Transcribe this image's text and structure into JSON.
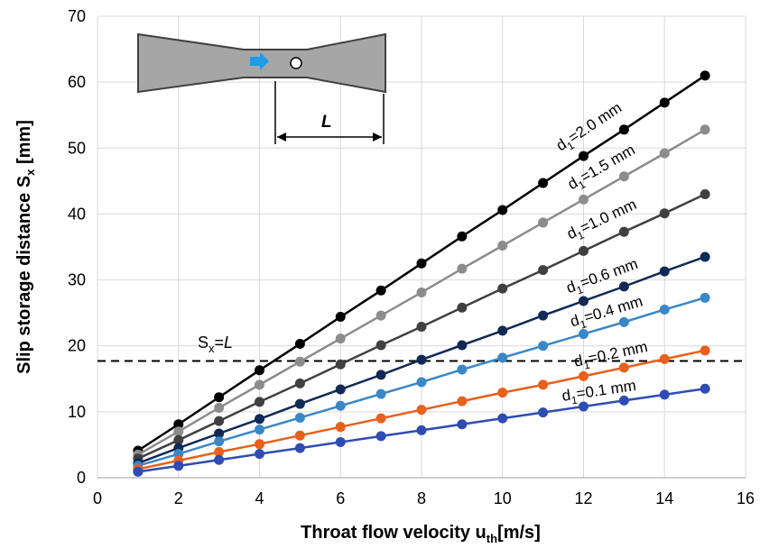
{
  "chart_data": {
    "type": "line",
    "xlabel": {
      "main": "Throat flow velocity u",
      "sub": "th",
      "tail": "[m/s]"
    },
    "ylabel": {
      "main": "Slip storage distance S",
      "sub": "x",
      "tail": " [mm]"
    },
    "xlim": [
      0,
      16
    ],
    "ylim": [
      0,
      70
    ],
    "xticks": [
      "0",
      "2",
      "4",
      "6",
      "8",
      "10",
      "12",
      "14",
      "16"
    ],
    "yticks": [
      "0",
      "10",
      "20",
      "30",
      "40",
      "50",
      "60",
      "70"
    ],
    "grid": true,
    "x": [
      1,
      2,
      3,
      4,
      5,
      6,
      7,
      8,
      9,
      10,
      11,
      12,
      13,
      14,
      15
    ],
    "series": [
      {
        "name": "d1=2.0 mm",
        "label": {
          "d": "d",
          "sub": "1",
          "rest": "=2.0 mm"
        },
        "color": "#000000",
        "values": [
          4.1,
          8.1,
          12.2,
          16.3,
          20.3,
          24.4,
          28.4,
          32.5,
          36.6,
          40.6,
          44.7,
          48.8,
          52.8,
          56.9,
          61.0
        ]
      },
      {
        "name": "d1=1.5 mm",
        "label": {
          "d": "d",
          "sub": "1",
          "rest": "=1.5 mm"
        },
        "color": "#8c8c8c",
        "values": [
          3.5,
          7.0,
          10.6,
          14.1,
          17.6,
          21.1,
          24.6,
          28.1,
          31.7,
          35.2,
          38.7,
          42.2,
          45.7,
          49.2,
          52.8
        ]
      },
      {
        "name": "d1=1.0 mm",
        "label": {
          "d": "d",
          "sub": "1",
          "rest": "=1.0 mm"
        },
        "color": "#404040",
        "values": [
          2.9,
          5.7,
          8.6,
          11.5,
          14.3,
          17.2,
          20.1,
          22.9,
          25.8,
          28.7,
          31.5,
          34.4,
          37.3,
          40.1,
          43.0
        ]
      },
      {
        "name": "d1=0.6 mm",
        "label": {
          "d": "d",
          "sub": "1",
          "rest": "=0.6 mm"
        },
        "color": "#102a55",
        "values": [
          2.2,
          4.5,
          6.7,
          8.9,
          11.2,
          13.4,
          15.6,
          17.9,
          20.1,
          22.3,
          24.6,
          26.8,
          29.0,
          31.3,
          33.5
        ]
      },
      {
        "name": "d1=0.4 mm",
        "label": {
          "d": "d",
          "sub": "1",
          "rest": "=0.4 mm"
        },
        "color": "#3a87c8",
        "values": [
          1.8,
          3.6,
          5.5,
          7.3,
          9.1,
          10.9,
          12.7,
          14.5,
          16.4,
          18.2,
          20.0,
          21.8,
          23.6,
          25.5,
          27.3
        ]
      },
      {
        "name": "d1=0.2 mm",
        "label": {
          "d": "d",
          "sub": "1",
          "rest": "=0.2 mm"
        },
        "color": "#e8601c",
        "values": [
          1.3,
          2.6,
          3.9,
          5.1,
          6.4,
          7.7,
          9.0,
          10.3,
          11.6,
          12.9,
          14.1,
          15.4,
          16.7,
          18.0,
          19.3
        ]
      },
      {
        "name": "d1=0.1 mm",
        "label": {
          "d": "d",
          "sub": "1",
          "rest": "=0.1 mm"
        },
        "color": "#2e4cb3",
        "values": [
          0.9,
          1.8,
          2.7,
          3.6,
          4.5,
          5.4,
          6.3,
          7.2,
          8.1,
          9.0,
          9.9,
          10.8,
          11.7,
          12.6,
          13.5
        ]
      }
    ],
    "reference_line": {
      "y": 17.7,
      "label": {
        "s": "S",
        "sub": "x",
        "rest": "=",
        "L": "L"
      },
      "style": "dashed"
    },
    "inset": {
      "length_label": "L"
    }
  }
}
